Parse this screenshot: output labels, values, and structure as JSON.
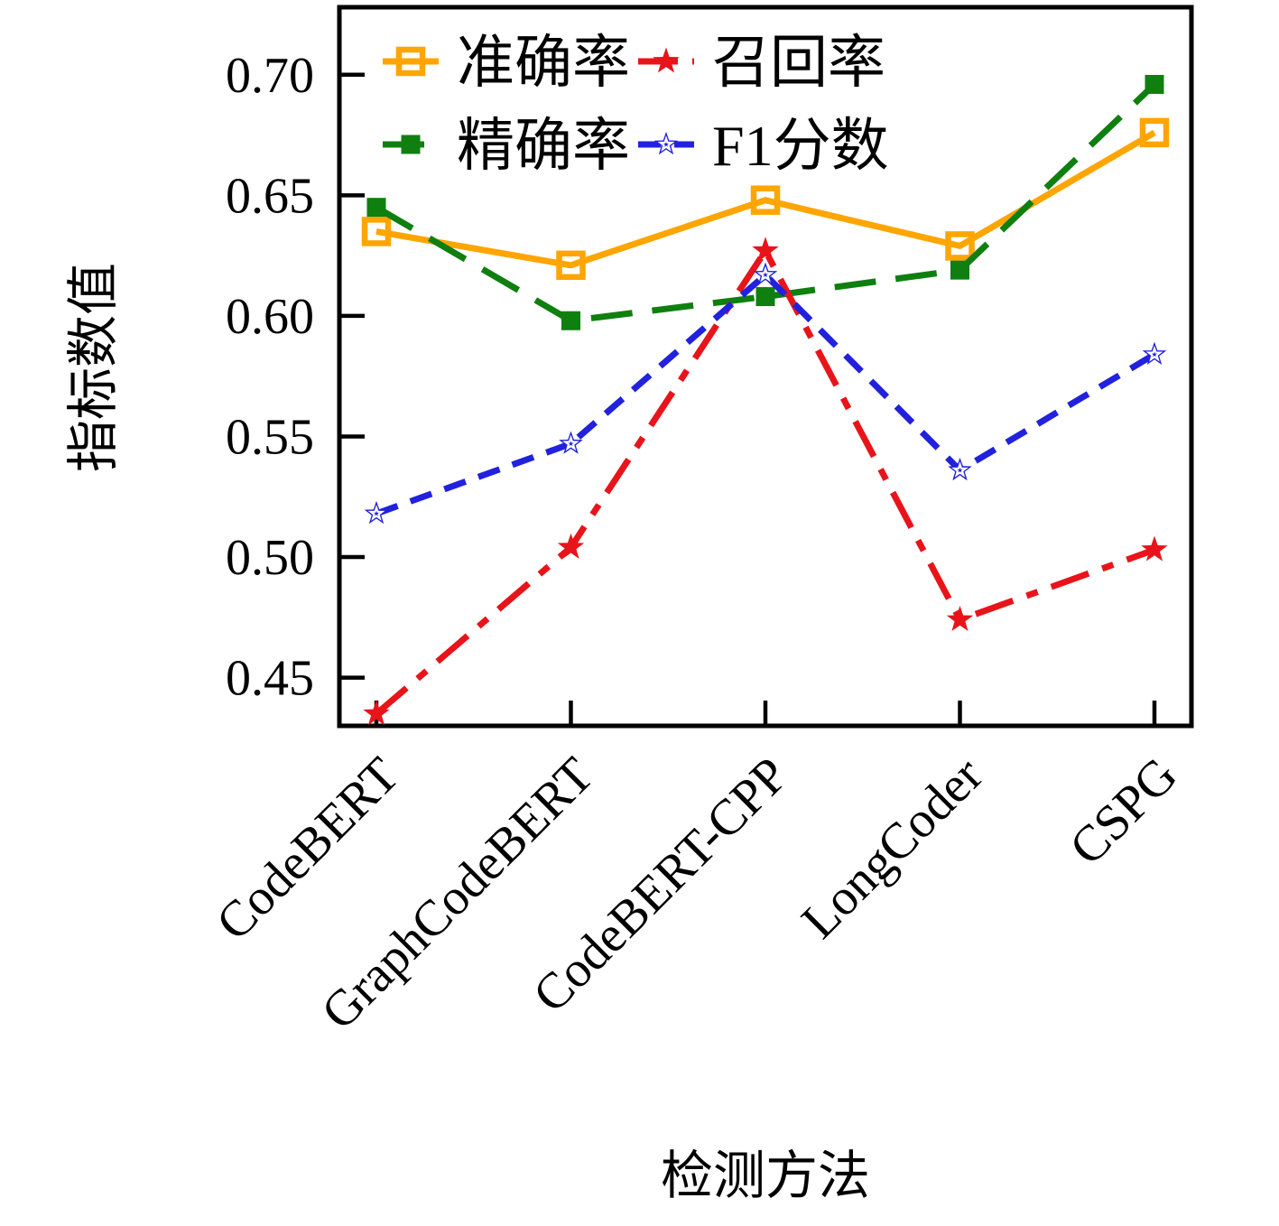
{
  "chart_data": {
    "type": "line",
    "title": "",
    "xlabel": "检测方法",
    "ylabel": "指标数值",
    "categories": [
      "CodeBERT",
      "GraphCodeBERT",
      "CodeBERT-CPP",
      "LongCoder",
      "CSPG"
    ],
    "series": [
      {
        "name": "准确率",
        "color": "#FFA500",
        "linestyle": "solid",
        "marker": "open-square",
        "values": [
          0.635,
          0.621,
          0.648,
          0.629,
          0.676
        ]
      },
      {
        "name": "精确率",
        "color": "#0F7F0F",
        "linestyle": "long-dash",
        "marker": "filled-square",
        "values": [
          0.645,
          0.598,
          0.608,
          0.619,
          0.696
        ]
      },
      {
        "name": "召回率",
        "color": "#E8141A",
        "linestyle": "dash-dot",
        "marker": "filled-star",
        "values": [
          0.435,
          0.504,
          0.627,
          0.474,
          0.503
        ]
      },
      {
        "name": "F1分数",
        "color": "#2121DE",
        "linestyle": "dash",
        "marker": "open-star",
        "values": [
          0.518,
          0.547,
          0.617,
          0.536,
          0.584
        ]
      }
    ],
    "y_ticks": [
      0.45,
      0.5,
      0.55,
      0.6,
      0.65,
      0.7
    ],
    "y_tick_format": "0.00",
    "ylim": [
      0.43,
      0.728
    ],
    "grid": false,
    "legend": {
      "position": "upper-left",
      "frame": false,
      "columns": [
        [
          0,
          1
        ],
        [
          2,
          3
        ]
      ]
    }
  }
}
